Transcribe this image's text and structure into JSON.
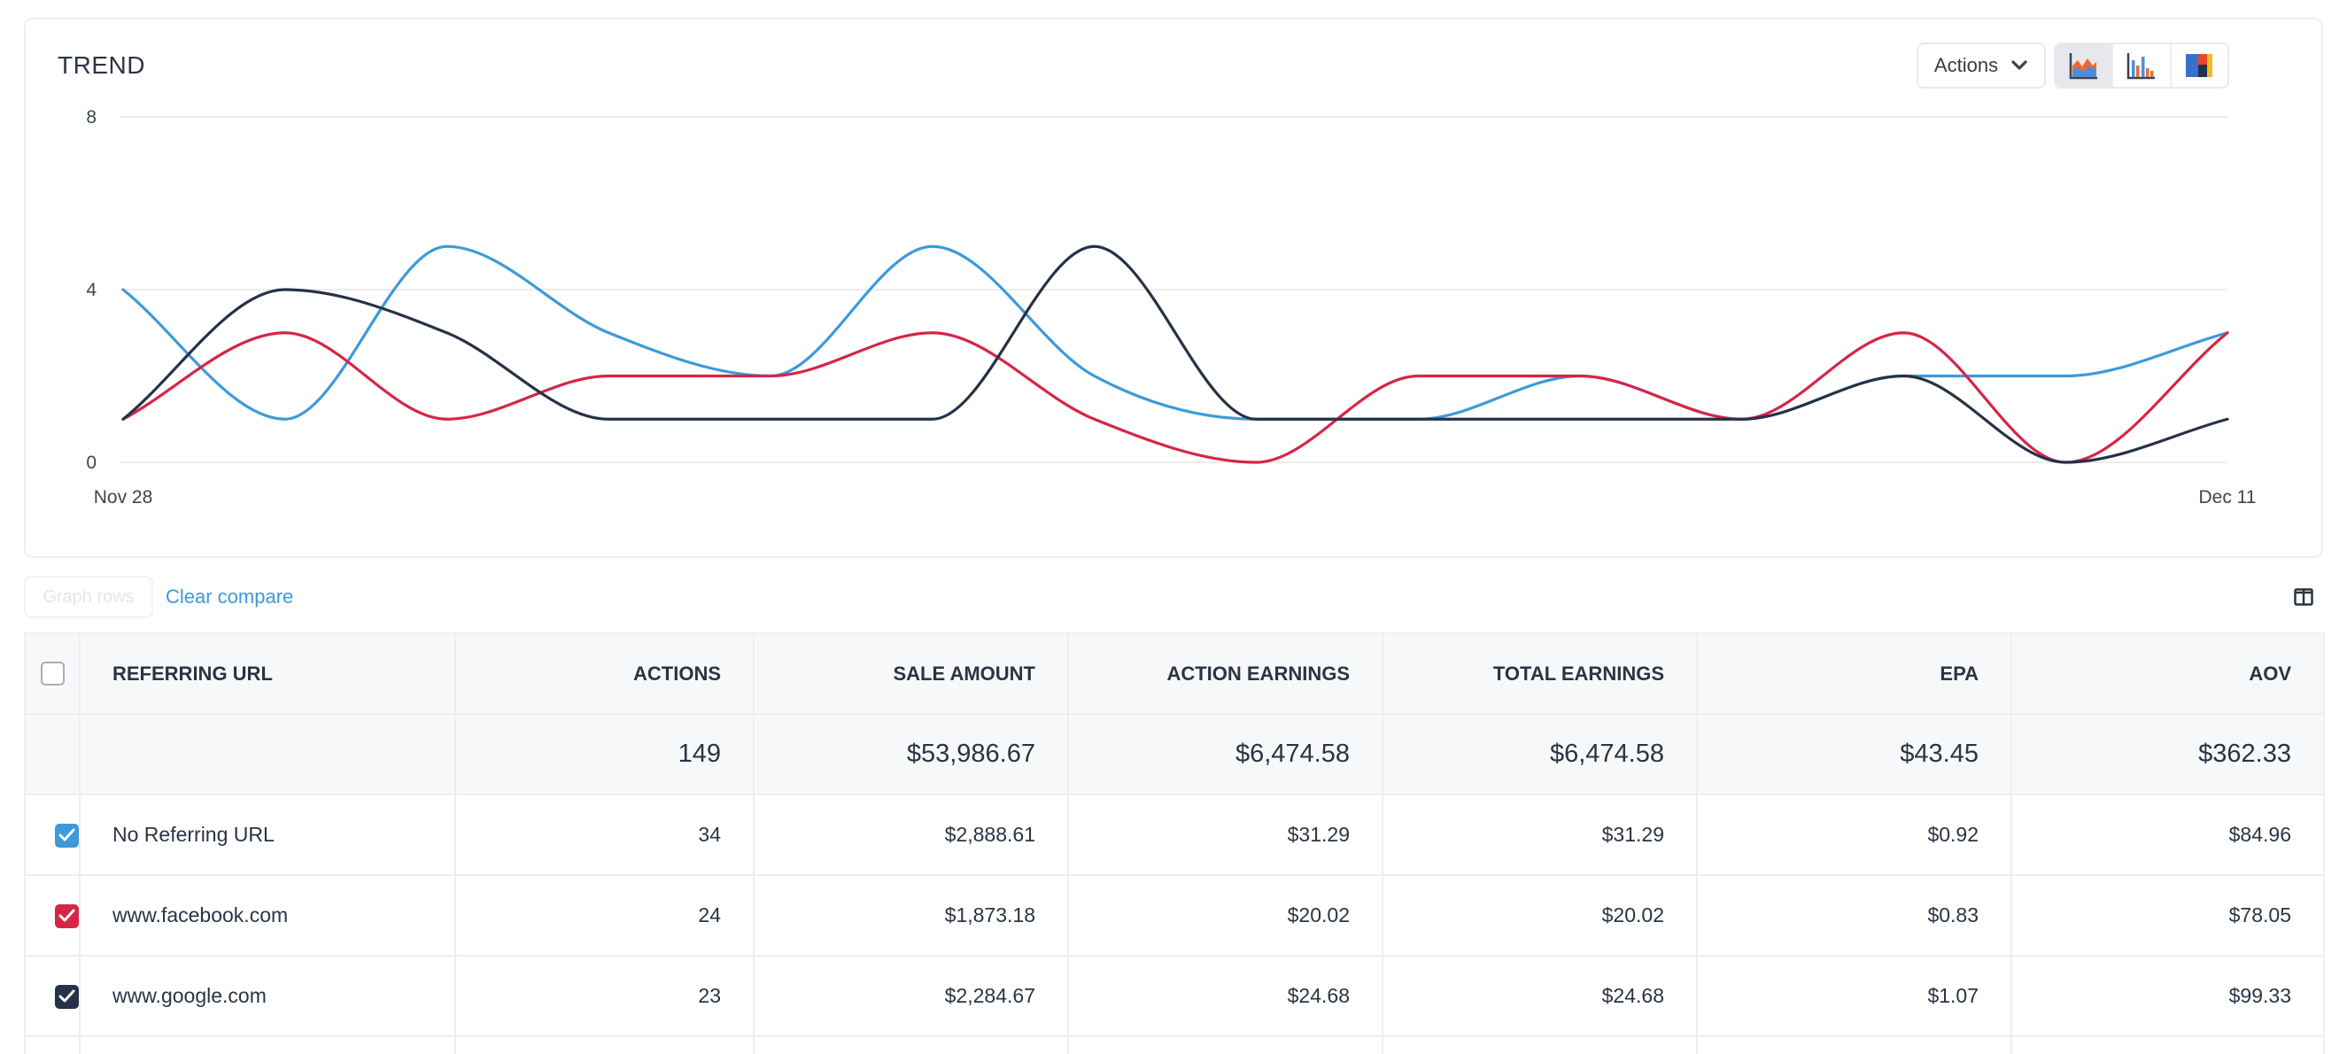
{
  "trend": {
    "title": "TREND",
    "actions_dropdown": {
      "label": "Actions"
    },
    "chart_type_buttons": [
      {
        "name": "area-chart-icon",
        "active": true
      },
      {
        "name": "bar-chart-icon",
        "active": false
      },
      {
        "name": "stacked-chart-icon",
        "active": false
      }
    ]
  },
  "toolbar": {
    "graph_rows_label": "Graph rows",
    "clear_compare_label": "Clear compare"
  },
  "table": {
    "headers": {
      "url": "REFERRING URL",
      "actions": "ACTIONS",
      "sale_amount": "SALE AMOUNT",
      "action_earnings": "ACTION EARNINGS",
      "total_earnings": "TOTAL EARNINGS",
      "epa": "EPA",
      "aov": "AOV"
    },
    "totals": {
      "actions": "149",
      "sale_amount": "$53,986.67",
      "action_earnings": "$6,474.58",
      "total_earnings": "$6,474.58",
      "epa": "$43.45",
      "aov": "$362.33"
    },
    "rows": [
      {
        "url": "No Referring URL",
        "actions": "34",
        "sale_amount": "$2,888.61",
        "action_earnings": "$31.29",
        "total_earnings": "$31.29",
        "epa": "$0.92",
        "aov": "$84.96",
        "checked": true,
        "color": "#3d9ad9"
      },
      {
        "url": "www.facebook.com",
        "actions": "24",
        "sale_amount": "$1,873.18",
        "action_earnings": "$20.02",
        "total_earnings": "$20.02",
        "epa": "$0.83",
        "aov": "$78.05",
        "checked": true,
        "color": "#d62547"
      },
      {
        "url": "www.google.com",
        "actions": "23",
        "sale_amount": "$2,284.67",
        "action_earnings": "$24.68",
        "total_earnings": "$24.68",
        "epa": "$1.07",
        "aov": "$99.33",
        "checked": true,
        "color": "#263246"
      }
    ]
  },
  "chart_data": {
    "type": "line",
    "title": "TREND",
    "x": [
      "Nov 28",
      "Nov 29",
      "Nov 30",
      "Dec 1",
      "Dec 2",
      "Dec 3",
      "Dec 4",
      "Dec 5",
      "Dec 6",
      "Dec 7",
      "Dec 8",
      "Dec 9",
      "Dec 10",
      "Dec 11"
    ],
    "xticks": [
      "Nov 28",
      "Dec 11"
    ],
    "yticks": [
      0,
      4,
      8
    ],
    "ylim": [
      0,
      8
    ],
    "grid": true,
    "legend": "none",
    "series": [
      {
        "color": "#3d9ad9",
        "values": [
          4,
          1,
          5,
          3,
          2,
          5,
          2,
          1,
          1,
          2,
          1,
          2,
          2,
          3
        ]
      },
      {
        "color": "#d62547",
        "values": [
          1,
          3,
          1,
          2,
          2,
          3,
          1,
          0,
          2,
          2,
          1,
          3,
          0,
          3
        ]
      },
      {
        "color": "#263246",
        "values": [
          1,
          4,
          3,
          1,
          1,
          1,
          5,
          1,
          1,
          1,
          1,
          2,
          0,
          1
        ]
      }
    ]
  }
}
